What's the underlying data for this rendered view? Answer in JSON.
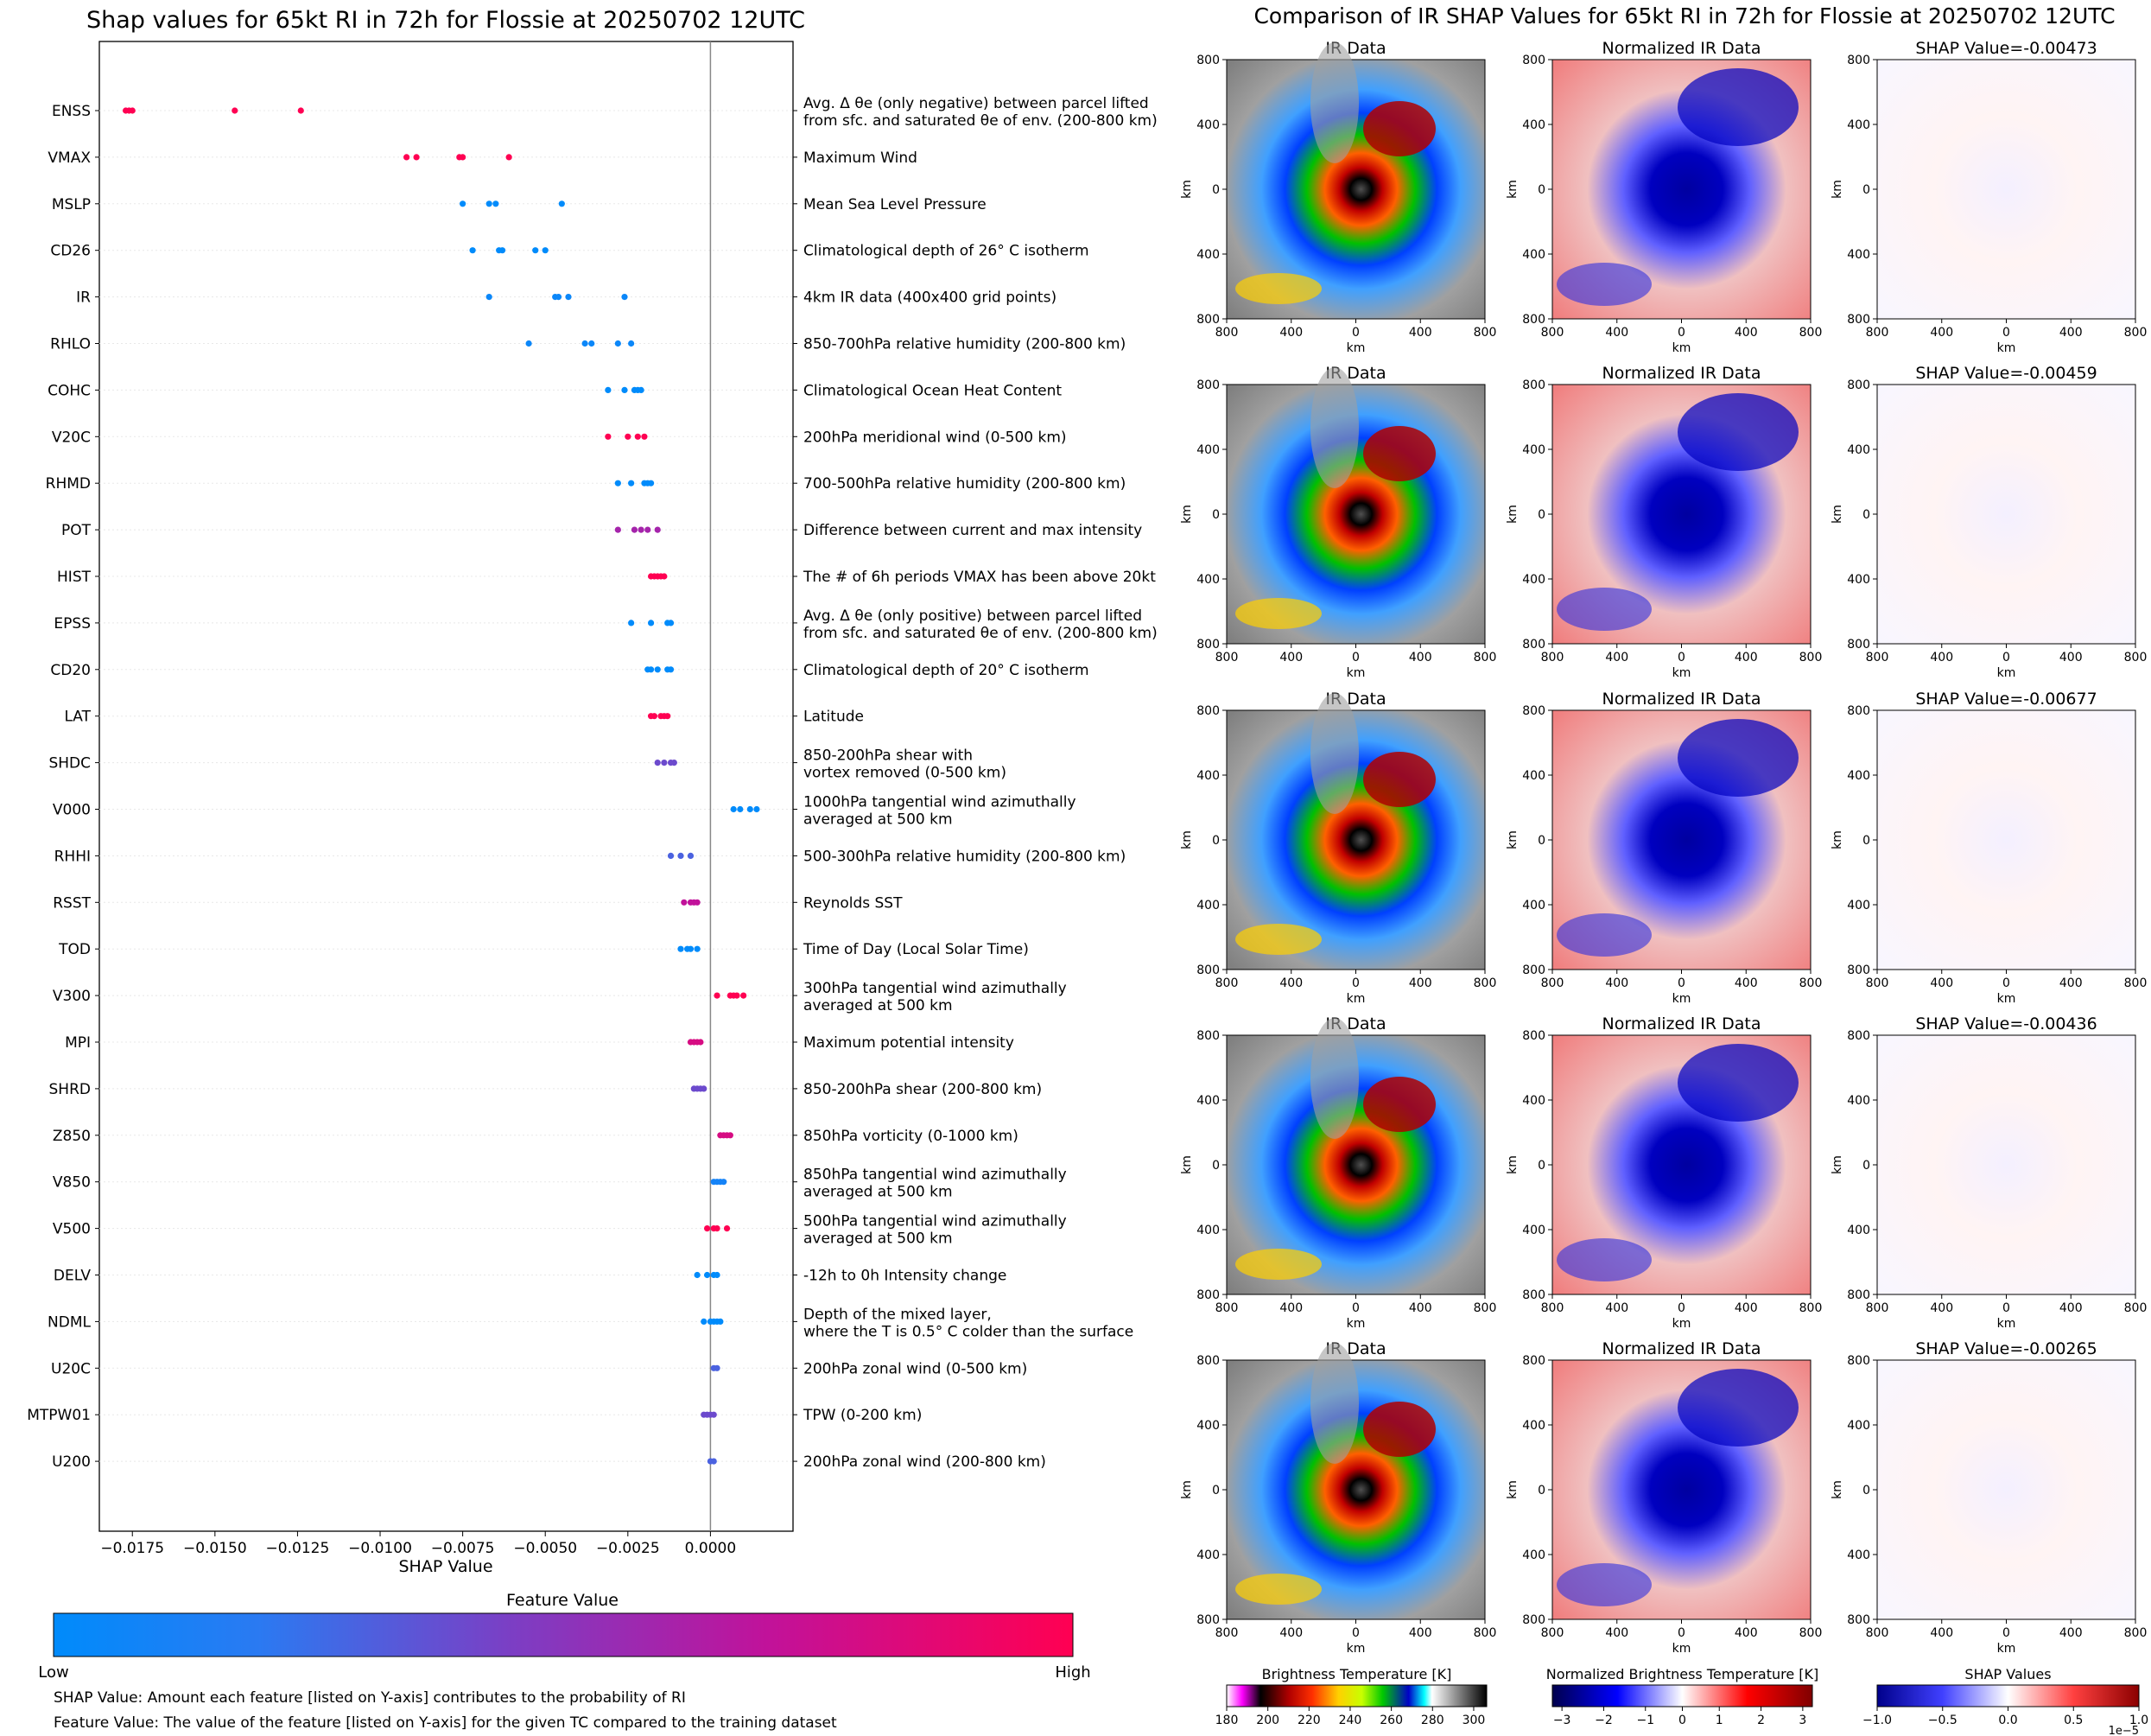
{
  "left_title": "Shap values for 65kt RI in 72h for Flossie at 20250702 12UTC",
  "right_title": "Comparison of IR SHAP Values for 65kt RI in 72h for Flossie at 20250702 12UTC",
  "xlabel": "SHAP Value",
  "colorbar": {
    "title": "Feature Value",
    "low": "Low",
    "high": "High"
  },
  "footnote1": "SHAP Value: Amount each feature [listed on Y-axis] contributes to the probability of RI",
  "footnote2": "Feature Value: The value of the feature [listed on Y-axis] for the given TC compared to the training dataset",
  "colors": {
    "low": "#008bfb",
    "mid": "#8a2fb5",
    "high": "#ff0052",
    "axis_zero": "#888888"
  },
  "chart_data": [
    {
      "type": "scatter",
      "title": "Shap values for 65kt RI in 72h for Flossie at 20250702 12UTC",
      "xlabel": "SHAP Value",
      "xlim": [
        -0.0185,
        0.0025
      ],
      "xticks": [
        -0.0175,
        -0.015,
        -0.0125,
        -0.01,
        -0.0075,
        -0.005,
        -0.0025,
        0.0
      ],
      "xtick_labels": [
        "−0.0175",
        "−0.0150",
        "−0.0125",
        "−0.0100",
        "−0.0075",
        "−0.0050",
        "−0.0025",
        "0.0000"
      ],
      "features": [
        {
          "name": "ENSS",
          "desc": [
            "Avg. Δ θe (only negative) between parcel lifted",
            "from sfc. and saturated θe of env. (200-800 km)"
          ],
          "points": [
            [
              -0.0177,
              1
            ],
            [
              -0.0176,
              1
            ],
            [
              -0.0175,
              1
            ],
            [
              -0.0144,
              1
            ],
            [
              -0.0124,
              1
            ]
          ]
        },
        {
          "name": "VMAX",
          "desc": [
            "Maximum Wind"
          ],
          "points": [
            [
              -0.0092,
              1
            ],
            [
              -0.0089,
              1
            ],
            [
              -0.0076,
              1
            ],
            [
              -0.0075,
              1
            ],
            [
              -0.0061,
              1
            ]
          ]
        },
        {
          "name": "MSLP",
          "desc": [
            "Mean Sea Level Pressure"
          ],
          "points": [
            [
              -0.0075,
              0
            ],
            [
              -0.0067,
              0
            ],
            [
              -0.0065,
              0
            ],
            [
              -0.0045,
              0
            ]
          ]
        },
        {
          "name": "CD26",
          "desc": [
            "Climatological depth of 26° C isotherm"
          ],
          "points": [
            [
              -0.0072,
              0
            ],
            [
              -0.0064,
              0
            ],
            [
              -0.0063,
              0
            ],
            [
              -0.0053,
              0
            ],
            [
              -0.005,
              0
            ]
          ]
        },
        {
          "name": "IR",
          "desc": [
            "4km IR data (400x400 grid points)"
          ],
          "points": [
            [
              -0.0067,
              0.05
            ],
            [
              -0.0047,
              0.05
            ],
            [
              -0.0046,
              0.05
            ],
            [
              -0.0043,
              0.05
            ],
            [
              -0.0026,
              0.05
            ]
          ]
        },
        {
          "name": "RHLO",
          "desc": [
            "850-700hPa relative humidity (200-800 km)"
          ],
          "points": [
            [
              -0.0055,
              0.05
            ],
            [
              -0.0038,
              0.05
            ],
            [
              -0.0036,
              0.05
            ],
            [
              -0.0028,
              0.05
            ],
            [
              -0.0024,
              0.05
            ]
          ]
        },
        {
          "name": "COHC",
          "desc": [
            "Climatological Ocean Heat Content"
          ],
          "points": [
            [
              -0.0031,
              0
            ],
            [
              -0.0026,
              0
            ],
            [
              -0.0023,
              0
            ],
            [
              -0.0022,
              0
            ],
            [
              -0.0021,
              0
            ]
          ]
        },
        {
          "name": "V20C",
          "desc": [
            "200hPa meridional wind (0-500 km)"
          ],
          "points": [
            [
              -0.0031,
              1
            ],
            [
              -0.0025,
              1
            ],
            [
              -0.0022,
              1
            ],
            [
              -0.002,
              1
            ]
          ]
        },
        {
          "name": "RHMD",
          "desc": [
            "700-500hPa relative humidity (200-800 km)"
          ],
          "points": [
            [
              -0.0028,
              0
            ],
            [
              -0.0024,
              0
            ],
            [
              -0.002,
              0
            ],
            [
              -0.0019,
              0
            ],
            [
              -0.0018,
              0
            ]
          ]
        },
        {
          "name": "POT",
          "desc": [
            "Difference between current and max intensity"
          ],
          "points": [
            [
              -0.0028,
              0.6
            ],
            [
              -0.0023,
              0.6
            ],
            [
              -0.0021,
              0.6
            ],
            [
              -0.0019,
              0.6
            ],
            [
              -0.0016,
              0.6
            ]
          ]
        },
        {
          "name": "HIST",
          "desc": [
            "The # of 6h periods VMAX has been above 20kt"
          ],
          "points": [
            [
              -0.0018,
              1
            ],
            [
              -0.0017,
              1
            ],
            [
              -0.0016,
              1
            ],
            [
              -0.0015,
              1
            ],
            [
              -0.0014,
              1
            ]
          ]
        },
        {
          "name": "EPSS",
          "desc": [
            "Avg. Δ θe (only positive) between parcel lifted",
            "from sfc. and saturated θe of env. (200-800 km)"
          ],
          "points": [
            [
              -0.0024,
              0
            ],
            [
              -0.0018,
              0
            ],
            [
              -0.0013,
              0
            ],
            [
              -0.0012,
              0
            ]
          ]
        },
        {
          "name": "CD20",
          "desc": [
            "Climatological depth of 20° C isotherm"
          ],
          "points": [
            [
              -0.0019,
              0
            ],
            [
              -0.0018,
              0
            ],
            [
              -0.0016,
              0
            ],
            [
              -0.0013,
              0
            ],
            [
              -0.0012,
              0
            ]
          ]
        },
        {
          "name": "LAT",
          "desc": [
            "Latitude"
          ],
          "points": [
            [
              -0.0018,
              1
            ],
            [
              -0.0017,
              1
            ],
            [
              -0.0015,
              1
            ],
            [
              -0.0014,
              1
            ],
            [
              -0.0013,
              1
            ]
          ]
        },
        {
          "name": "SHDC",
          "desc": [
            "850-200hPa shear with",
            "vortex removed (0-500 km)"
          ],
          "points": [
            [
              -0.0016,
              0.4
            ],
            [
              -0.0014,
              0.4
            ],
            [
              -0.0012,
              0.4
            ],
            [
              -0.0011,
              0.4
            ]
          ]
        },
        {
          "name": "V000",
          "desc": [
            "1000hPa tangential wind azimuthally",
            "averaged at 500 km"
          ],
          "points": [
            [
              0.0007,
              0
            ],
            [
              0.0009,
              0
            ],
            [
              0.0012,
              0
            ],
            [
              0.0014,
              0
            ]
          ]
        },
        {
          "name": "RHHI",
          "desc": [
            "500-300hPa relative humidity (200-800 km)"
          ],
          "points": [
            [
              -0.0012,
              0.3
            ],
            [
              -0.0009,
              0.3
            ],
            [
              -0.0006,
              0.3
            ]
          ]
        },
        {
          "name": "RSST",
          "desc": [
            "Reynolds SST"
          ],
          "points": [
            [
              -0.0008,
              0.7
            ],
            [
              -0.0006,
              0.7
            ],
            [
              -0.0005,
              0.7
            ],
            [
              -0.0004,
              0.7
            ]
          ]
        },
        {
          "name": "TOD",
          "desc": [
            "Time of Day (Local Solar Time)"
          ],
          "points": [
            [
              -0.0009,
              0
            ],
            [
              -0.0007,
              0
            ],
            [
              -0.0006,
              0
            ],
            [
              -0.0004,
              0
            ]
          ]
        },
        {
          "name": "V300",
          "desc": [
            "300hPa tangential wind azimuthally",
            "averaged at 500 km"
          ],
          "points": [
            [
              0.0002,
              1
            ],
            [
              0.0006,
              1
            ],
            [
              0.0007,
              1
            ],
            [
              0.0008,
              1
            ],
            [
              0.001,
              1
            ]
          ]
        },
        {
          "name": "MPI",
          "desc": [
            "Maximum potential intensity"
          ],
          "points": [
            [
              -0.0006,
              0.8
            ],
            [
              -0.0005,
              0.8
            ],
            [
              -0.0004,
              0.8
            ],
            [
              -0.0003,
              0.8
            ]
          ]
        },
        {
          "name": "SHRD",
          "desc": [
            "850-200hPa shear (200-800 km)"
          ],
          "points": [
            [
              -0.0005,
              0.4
            ],
            [
              -0.0004,
              0.4
            ],
            [
              -0.0003,
              0.4
            ],
            [
              -0.0002,
              0.4
            ]
          ]
        },
        {
          "name": "Z850",
          "desc": [
            "850hPa vorticity (0-1000 km)"
          ],
          "points": [
            [
              0.0003,
              0.8
            ],
            [
              0.0004,
              0.8
            ],
            [
              0.0005,
              0.8
            ],
            [
              0.0006,
              0.8
            ]
          ]
        },
        {
          "name": "V850",
          "desc": [
            "850hPa tangential wind azimuthally",
            "averaged at 500 km"
          ],
          "points": [
            [
              0.0001,
              0.1
            ],
            [
              0.0002,
              0.1
            ],
            [
              0.0003,
              0.1
            ],
            [
              0.0004,
              0.1
            ]
          ]
        },
        {
          "name": "V500",
          "desc": [
            "500hPa tangential wind azimuthally",
            "averaged at 500 km"
          ],
          "points": [
            [
              -0.0001,
              1
            ],
            [
              0.0001,
              1
            ],
            [
              0.0002,
              1
            ],
            [
              0.0005,
              1
            ]
          ]
        },
        {
          "name": "DELV",
          "desc": [
            "-12h to 0h Intensity change"
          ],
          "points": [
            [
              -0.0004,
              0
            ],
            [
              -0.0001,
              0
            ],
            [
              0.0001,
              0
            ],
            [
              0.0002,
              0
            ]
          ]
        },
        {
          "name": "NDML",
          "desc": [
            "Depth of the mixed layer,",
            "where the T is 0.5° C colder than the surface"
          ],
          "points": [
            [
              -0.0002,
              0
            ],
            [
              0.0,
              0
            ],
            [
              0.0001,
              0
            ],
            [
              0.0002,
              0
            ],
            [
              0.0003,
              0
            ]
          ]
        },
        {
          "name": "U20C",
          "desc": [
            "200hPa zonal wind (0-500 km)"
          ],
          "points": [
            [
              0.0001,
              0.3
            ],
            [
              0.0002,
              0.3
            ]
          ]
        },
        {
          "name": "MTPW01",
          "desc": [
            "TPW (0-200 km)"
          ],
          "points": [
            [
              -0.0002,
              0.4
            ],
            [
              -0.0001,
              0.4
            ],
            [
              0.0,
              0.4
            ],
            [
              0.0001,
              0.4
            ]
          ]
        },
        {
          "name": "U200",
          "desc": [
            "200hPa zonal wind (200-800 km)"
          ],
          "points": [
            [
              0.0,
              0.3
            ],
            [
              0.0001,
              0.3
            ]
          ]
        }
      ]
    },
    {
      "type": "heatmap",
      "title": "Comparison of IR SHAP Values for 65kt RI in 72h for Flossie at 20250702 12UTC",
      "panel_titles": [
        "IR Data",
        "Normalized IR Data",
        "SHAP Value=-0.00473",
        "IR Data",
        "Normalized IR Data",
        "SHAP Value=-0.00459",
        "IR Data",
        "Normalized IR Data",
        "SHAP Value=-0.00677",
        "IR Data",
        "Normalized IR Data",
        "SHAP Value=-0.00436",
        "IR Data",
        "Normalized IR Data",
        "SHAP Value=-0.00265"
      ],
      "shap_values": [
        -0.00473,
        -0.00459,
        -0.00677,
        -0.00436,
        -0.00265
      ],
      "axis_label": "km",
      "tick_labels": [
        "800",
        "400",
        "0",
        "400",
        "800"
      ],
      "colorbars": [
        {
          "label": "Brightness Temperature [K]",
          "ticks": [
            "180",
            "200",
            "220",
            "240",
            "260",
            "280",
            "300"
          ]
        },
        {
          "label": "Normalized Brightness Temperature [K]",
          "ticks": [
            "−3",
            "−2",
            "−1",
            "0",
            "1",
            "2",
            "3"
          ]
        },
        {
          "label": "SHAP Values",
          "ticks": [
            "−1.0",
            "−0.5",
            "0.0",
            "0.5",
            "1.0"
          ],
          "offset": "1e−5"
        }
      ]
    }
  ]
}
